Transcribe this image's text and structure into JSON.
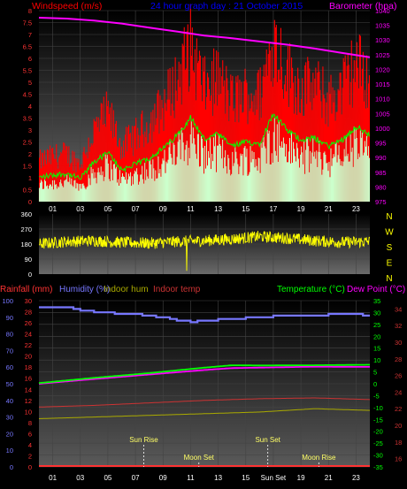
{
  "colors": {
    "wind": "#ff0000",
    "gust_fill": "#ff0000",
    "avg": "#00ff00",
    "lowfill": "#ccffcc",
    "baro": "#ff00ff",
    "dir": "#ffff00",
    "humidity": "#7777ff",
    "rain": "#ff3333",
    "temp": "#00ff00",
    "dew": "#ff00ff",
    "indoor_hum": "#aaaa00",
    "indoor_temp": "#cc3333",
    "grid": "#444444"
  },
  "top": {
    "title": "24 hour graph day : 21 October 2015",
    "left_label": "Windspeed (m/s)",
    "right_label": "Barometer (hpa)",
    "left_ticks": [
      "0",
      "0.5",
      "1",
      "1.5",
      "2",
      "2.5",
      "3",
      "3.5",
      "4",
      "4.5",
      "5",
      "5.5",
      "6",
      "6.5",
      "7",
      "7.5",
      "8"
    ],
    "right_ticks": [
      "975",
      "980",
      "985",
      "990",
      "995",
      "1000",
      "1005",
      "1010",
      "1015",
      "1020",
      "1025",
      "1030",
      "1035",
      "1040"
    ]
  },
  "mid": {
    "ticks": [
      "0",
      "90",
      "180",
      "270",
      "360"
    ],
    "compass": [
      "N",
      "W",
      "S",
      "E",
      "N"
    ]
  },
  "bottom": {
    "label_rain": "Rainfall (mm)",
    "label_humidity": "Humidity (%)",
    "label_indoor_hum": "Indoor hum",
    "label_indoor_temp": "Indoor temp",
    "label_temperature": "Temperature (°C)",
    "label_dewpoint": "Dew Point (°C)",
    "hum_ticks": [
      "0",
      "10",
      "20",
      "30",
      "40",
      "50",
      "60",
      "70",
      "80",
      "90",
      "100"
    ],
    "rain_ticks": [
      "0",
      "2",
      "4",
      "6",
      "8",
      "10",
      "12",
      "14",
      "16",
      "18",
      "20",
      "22",
      "24",
      "26",
      "28",
      "30"
    ],
    "temp_ticks": [
      "-35",
      "-30",
      "-25",
      "-20",
      "-15",
      "-10",
      "-5",
      "0",
      "5",
      "10",
      "15",
      "20",
      "25",
      "30",
      "35"
    ],
    "indoor_ticks": [
      "16",
      "18",
      "20",
      "22",
      "24",
      "26",
      "28",
      "30",
      "32",
      "34"
    ],
    "events": [
      {
        "label": "Sun Rise",
        "hour": 7.6
      },
      {
        "label": "Moon Set",
        "hour": 11.6
      },
      {
        "label": "Sun Set",
        "hour": 16.6
      },
      {
        "label": "Moon Rise",
        "hour": 20.3
      }
    ]
  },
  "hour_ticks": [
    "01",
    "03",
    "05",
    "07",
    "09",
    "11",
    "13",
    "15",
    "17",
    "19",
    "21",
    "23"
  ],
  "bottom_hour_ticks": [
    "01",
    "03",
    "05",
    "07",
    "09",
    "11",
    "13",
    "15",
    "Sun Set",
    "19",
    "21",
    "23"
  ],
  "chart_data": [
    {
      "type": "area",
      "title": "24 hour graph day : 21 October 2015",
      "x_range_hours": [
        0,
        24
      ],
      "series": [
        {
          "name": "Windspeed (m/s)",
          "x": [
            0,
            1,
            2,
            3,
            4,
            5,
            6,
            7,
            8,
            9,
            10,
            11,
            12,
            13,
            14,
            15,
            16,
            17,
            18,
            19,
            20,
            21,
            22,
            23,
            24
          ],
          "values": [
            1.6,
            1.8,
            1.9,
            1.5,
            2.8,
            3.5,
            2.2,
            2.6,
            3.1,
            3.8,
            4.8,
            6.2,
            4.5,
            4.9,
            4.0,
            4.3,
            4.2,
            6.5,
            5.2,
            4.5,
            4.6,
            4.0,
            4.5,
            5.5,
            4.8
          ]
        },
        {
          "name": "Barometer (hpa)",
          "x": [
            0,
            2,
            4,
            6,
            8,
            10,
            12,
            14,
            16,
            18,
            20,
            22,
            24
          ],
          "values": [
            1037.6,
            1037.3,
            1036.6,
            1035.6,
            1034.2,
            1032.9,
            1031.5,
            1030.6,
            1029.5,
            1028.4,
            1027.1,
            1025.6,
            1024.1
          ]
        }
      ],
      "ylim_left": [
        0,
        8
      ],
      "ylim_right": [
        975,
        1040
      ]
    },
    {
      "type": "scatter",
      "series": [
        {
          "name": "Wind direction",
          "x": [
            0,
            2,
            4,
            6,
            8,
            10,
            12,
            14,
            16,
            18,
            20,
            22,
            24
          ],
          "values": [
            180,
            195,
            200,
            190,
            185,
            195,
            200,
            210,
            225,
            215,
            200,
            190,
            195
          ]
        }
      ],
      "ylim": [
        0,
        360
      ]
    },
    {
      "type": "line",
      "series": [
        {
          "name": "Humidity (%)",
          "x": [
            0,
            2,
            3,
            4,
            6,
            8,
            10,
            11,
            12,
            14,
            16,
            18,
            20,
            22,
            24
          ],
          "values": [
            96,
            96,
            94,
            93,
            92,
            91,
            88,
            87,
            88,
            89,
            90,
            91,
            91,
            92,
            91
          ]
        },
        {
          "name": "Temperature (°C)",
          "x": [
            0,
            4,
            8,
            12,
            14,
            16,
            20,
            24
          ],
          "values": [
            0.3,
            2.5,
            4.5,
            6.8,
            7.8,
            7.7,
            7.8,
            8.0
          ]
        },
        {
          "name": "Dew Point (°C)",
          "x": [
            0,
            4,
            8,
            12,
            14,
            16,
            20,
            24
          ],
          "values": [
            0.0,
            2.0,
            3.9,
            5.8,
            6.6,
            6.8,
            7.2,
            7.1
          ]
        },
        {
          "name": "Indoor hum",
          "x": [
            0,
            4,
            8,
            12,
            16,
            18,
            20,
            24
          ],
          "values": [
            29,
            30,
            31,
            32,
            33,
            34,
            35,
            34
          ]
        },
        {
          "name": "Indoor temp",
          "x": [
            0,
            4,
            8,
            12,
            16,
            20,
            24
          ],
          "values": [
            22.2,
            22.4,
            22.7,
            23.0,
            23.2,
            23.3,
            23.1
          ]
        },
        {
          "name": "Rainfall (mm)",
          "x": [
            0,
            24
          ],
          "values": [
            0,
            0
          ]
        }
      ],
      "ylim_humidity": [
        0,
        100
      ],
      "ylim_rain": [
        0,
        30
      ],
      "ylim_temp": [
        -35,
        35
      ]
    }
  ]
}
